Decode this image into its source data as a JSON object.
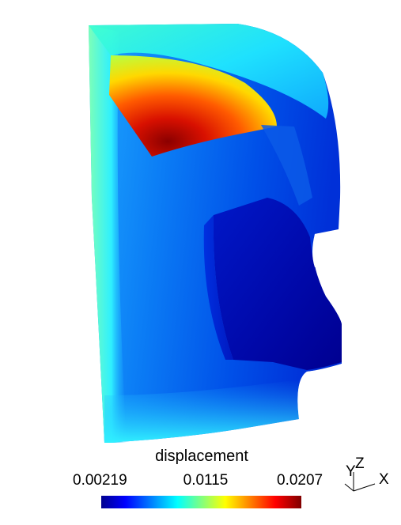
{
  "legend": {
    "title": "displacement",
    "min_label": "0.00219",
    "mid_label": "0.0115",
    "max_label": "0.0207",
    "colormap": [
      "#00008f",
      "#0000ff",
      "#00ffff",
      "#ffff00",
      "#ff0000",
      "#800000"
    ]
  },
  "orientation_axes": {
    "x_label": "X",
    "y_label": "Y",
    "z_label": "Z"
  },
  "render_colors": {
    "background": "#ffffff"
  }
}
